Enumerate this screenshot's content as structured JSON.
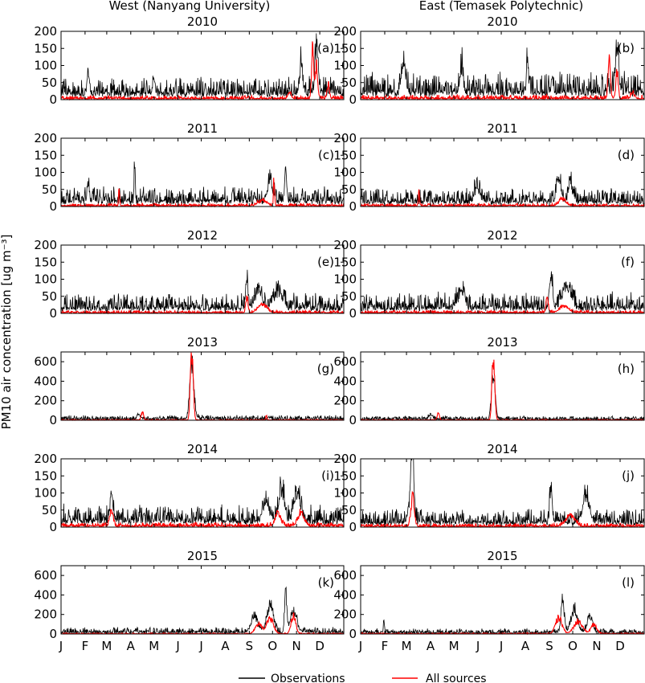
{
  "figure": {
    "ylabel": "PM10 air concentration [ug m⁻³]",
    "column_titles": [
      "West (Nanyang University)",
      "East (Temasek Polytechnic)"
    ],
    "month_ticks": [
      "J",
      "F",
      "M",
      "A",
      "M",
      "J",
      "J",
      "A",
      "S",
      "O",
      "N",
      "D"
    ],
    "legend": [
      {
        "label": "Observations",
        "color": "#000000"
      },
      {
        "label": "All sources",
        "color": "#ff0000"
      }
    ]
  },
  "chart_data": [
    {
      "type": "line",
      "station": "West",
      "title": "2010",
      "panel": "(a)",
      "ylim": [
        0,
        200
      ],
      "yticks": [
        0,
        50,
        100,
        150,
        200
      ],
      "series": [
        {
          "name": "Observations",
          "baseline": 18,
          "noise": 22,
          "peaks": [
            [
              330,
              170,
              3
            ],
            [
              310,
              120,
              2
            ],
            [
              35,
              90,
              2
            ],
            [
              120,
              60,
              2
            ]
          ]
        },
        {
          "name": "All sources",
          "baseline": 3,
          "noise": 4,
          "peaks": [
            [
              325,
              190,
              2
            ],
            [
              330,
              120,
              2
            ],
            [
              345,
              50,
              2
            ],
            [
              295,
              20,
              3
            ]
          ]
        }
      ]
    },
    {
      "type": "line",
      "station": "East",
      "title": "2010",
      "panel": "(b)",
      "ylim": [
        0,
        200
      ],
      "yticks": [
        0,
        50,
        100,
        150,
        200
      ],
      "series": [
        {
          "name": "Observations",
          "baseline": 20,
          "noise": 28,
          "peaks": [
            [
              330,
              185,
              3
            ],
            [
              55,
              110,
              4
            ],
            [
              215,
              110,
              2
            ],
            [
              130,
              80,
              3
            ]
          ]
        },
        {
          "name": "All sources",
          "baseline": 3,
          "noise": 5,
          "peaks": [
            [
              320,
              150,
              2
            ],
            [
              330,
              100,
              2
            ],
            [
              350,
              20,
              3
            ]
          ]
        }
      ]
    },
    {
      "type": "line",
      "station": "West",
      "title": "2011",
      "panel": "(c)",
      "ylim": [
        0,
        200
      ],
      "yticks": [
        0,
        50,
        100,
        150,
        200
      ],
      "series": [
        {
          "name": "Observations",
          "baseline": 15,
          "noise": 20,
          "peaks": [
            [
              95,
              155,
              1
            ],
            [
              290,
              115,
              2
            ],
            [
              35,
              75,
              2
            ],
            [
              270,
              60,
              5
            ]
          ]
        },
        {
          "name": "All sources",
          "baseline": 2,
          "noise": 3,
          "peaks": [
            [
              75,
              65,
              1
            ],
            [
              275,
              100,
              1
            ],
            [
              260,
              20,
              8
            ]
          ]
        }
      ]
    },
    {
      "type": "line",
      "station": "East",
      "title": "2011",
      "panel": "(d)",
      "ylim": [
        0,
        200
      ],
      "yticks": [
        0,
        50,
        100,
        150,
        200
      ],
      "series": [
        {
          "name": "Observations",
          "baseline": 14,
          "noise": 18,
          "peaks": [
            [
              255,
              85,
              4
            ],
            [
              270,
              70,
              4
            ],
            [
              150,
              55,
              5
            ]
          ]
        },
        {
          "name": "All sources",
          "baseline": 2,
          "noise": 3,
          "peaks": [
            [
              75,
              60,
              1
            ],
            [
              260,
              25,
              6
            ]
          ]
        }
      ]
    },
    {
      "type": "line",
      "station": "West",
      "title": "2012",
      "panel": "(e)",
      "ylim": [
        0,
        200
      ],
      "yticks": [
        0,
        50,
        100,
        150,
        200
      ],
      "series": [
        {
          "name": "Observations",
          "baseline": 15,
          "noise": 20,
          "peaks": [
            [
              240,
              120,
              2
            ],
            [
              255,
              70,
              6
            ],
            [
              280,
              60,
              8
            ]
          ]
        },
        {
          "name": "All sources",
          "baseline": 2,
          "noise": 3,
          "peaks": [
            [
              240,
              60,
              2
            ],
            [
              260,
              30,
              8
            ]
          ]
        }
      ]
    },
    {
      "type": "line",
      "station": "East",
      "title": "2012",
      "panel": "(f)",
      "ylim": [
        0,
        200
      ],
      "yticks": [
        0,
        50,
        100,
        150,
        200
      ],
      "series": [
        {
          "name": "Observations",
          "baseline": 16,
          "noise": 22,
          "peaks": [
            [
              245,
              105,
              3
            ],
            [
              265,
              70,
              8
            ],
            [
              130,
              55,
              6
            ]
          ]
        },
        {
          "name": "All sources",
          "baseline": 2,
          "noise": 3,
          "peaks": [
            [
              240,
              50,
              2
            ],
            [
              262,
              25,
              8
            ]
          ]
        }
      ]
    },
    {
      "type": "line",
      "station": "West",
      "title": "2013",
      "panel": "(g)",
      "ylim": [
        0,
        700
      ],
      "yticks": [
        0,
        200,
        400,
        600
      ],
      "series": [
        {
          "name": "Observations",
          "baseline": 12,
          "noise": 18,
          "peaks": [
            [
              168,
              500,
              3
            ],
            [
              170,
              300,
              4
            ],
            [
              100,
              60,
              3
            ]
          ]
        },
        {
          "name": "All sources",
          "baseline": 2,
          "noise": 3,
          "peaks": [
            [
              168,
              640,
              2
            ],
            [
              170,
              500,
              2
            ],
            [
              105,
              100,
              2
            ],
            [
              265,
              60,
              1
            ]
          ]
        }
      ]
    },
    {
      "type": "line",
      "station": "East",
      "title": "2013",
      "panel": "(h)",
      "ylim": [
        0,
        700
      ],
      "yticks": [
        0,
        200,
        400,
        600
      ],
      "series": [
        {
          "name": "Observations",
          "baseline": 10,
          "noise": 15,
          "peaks": [
            [
              170,
              400,
              3
            ],
            [
              172,
              250,
              3
            ],
            [
              90,
              60,
              3
            ]
          ]
        },
        {
          "name": "All sources",
          "baseline": 2,
          "noise": 3,
          "peaks": [
            [
              170,
              550,
              2
            ],
            [
              172,
              420,
              2
            ],
            [
              100,
              80,
              2
            ]
          ]
        }
      ]
    },
    {
      "type": "line",
      "station": "West",
      "title": "2014",
      "panel": "(i)",
      "ylim": [
        0,
        200
      ],
      "yticks": [
        0,
        50,
        100,
        150,
        200
      ],
      "series": [
        {
          "name": "Observations",
          "baseline": 18,
          "noise": 22,
          "peaks": [
            [
              65,
              90,
              3
            ],
            [
              285,
              110,
              5
            ],
            [
              305,
              100,
              6
            ],
            [
              265,
              70,
              6
            ]
          ]
        },
        {
          "name": "All sources",
          "baseline": 3,
          "noise": 5,
          "peaks": [
            [
              65,
              55,
              3
            ],
            [
              280,
              50,
              5
            ],
            [
              310,
              45,
              6
            ]
          ]
        }
      ]
    },
    {
      "type": "line",
      "station": "East",
      "title": "2014",
      "panel": "(j)",
      "ylim": [
        0,
        200
      ],
      "yticks": [
        0,
        50,
        100,
        150,
        200
      ],
      "series": [
        {
          "name": "Observations",
          "baseline": 14,
          "noise": 18,
          "peaks": [
            [
              67,
              190,
              2
            ],
            [
              65,
              120,
              4
            ],
            [
              245,
              130,
              2
            ],
            [
              290,
              95,
              6
            ]
          ]
        },
        {
          "name": "All sources",
          "baseline": 2,
          "noise": 4,
          "peaks": [
            [
              67,
              110,
              3
            ],
            [
              270,
              40,
              8
            ]
          ]
        }
      ]
    },
    {
      "type": "line",
      "station": "West",
      "title": "2015",
      "panel": "(k)",
      "ylim": [
        0,
        700
      ],
      "yticks": [
        0,
        200,
        400,
        600
      ],
      "series": [
        {
          "name": "Observations",
          "baseline": 15,
          "noise": 25,
          "peaks": [
            [
              290,
              480,
              2
            ],
            [
              270,
              350,
              6
            ],
            [
              250,
              200,
              6
            ],
            [
              300,
              260,
              6
            ]
          ]
        },
        {
          "name": "All sources",
          "baseline": 2,
          "noise": 4,
          "peaks": [
            [
              270,
              200,
              6
            ],
            [
              300,
              240,
              4
            ],
            [
              255,
              120,
              6
            ]
          ]
        }
      ]
    },
    {
      "type": "line",
      "station": "East",
      "title": "2015",
      "panel": "(l)",
      "ylim": [
        0,
        700
      ],
      "yticks": [
        0,
        200,
        400,
        600
      ],
      "series": [
        {
          "name": "Observations",
          "baseline": 12,
          "noise": 20,
          "peaks": [
            [
              260,
              410,
              3
            ],
            [
              275,
              300,
              6
            ],
            [
              295,
              220,
              5
            ],
            [
              30,
              150,
              1
            ]
          ]
        },
        {
          "name": "All sources",
          "baseline": 2,
          "noise": 4,
          "peaks": [
            [
              255,
              200,
              6
            ],
            [
              280,
              150,
              8
            ],
            [
              300,
              120,
              5
            ]
          ]
        }
      ]
    }
  ]
}
